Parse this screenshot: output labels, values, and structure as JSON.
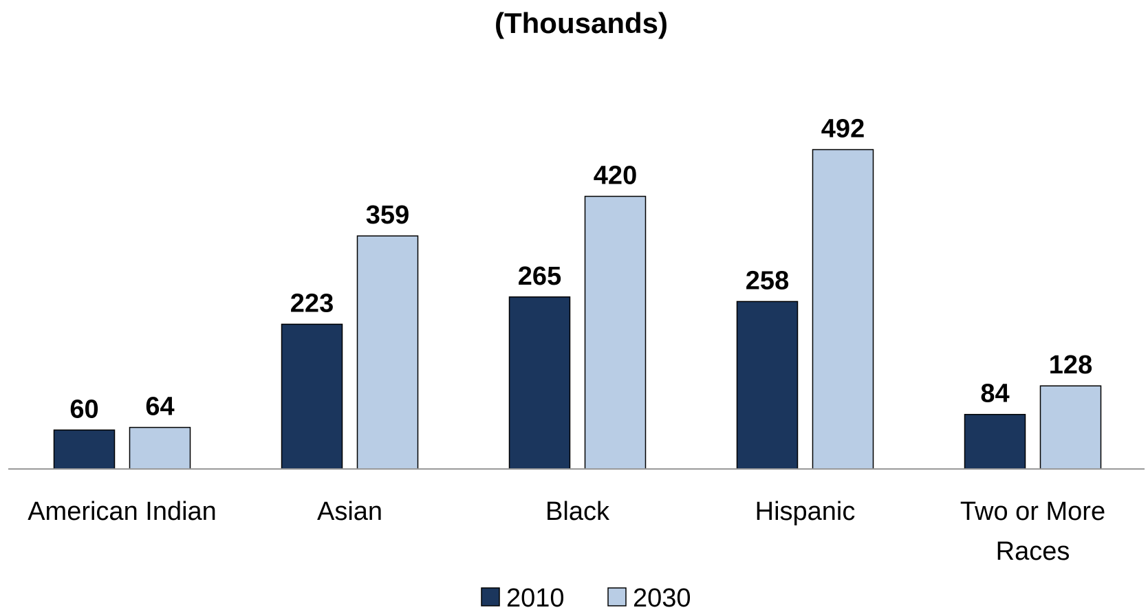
{
  "chart_data": {
    "type": "bar",
    "title": "(Thousands)",
    "categories": [
      "American Indian",
      "Asian",
      "Black",
      "Hispanic",
      "Two or More Races"
    ],
    "category_lines": [
      [
        "American Indian"
      ],
      [
        "Asian"
      ],
      [
        "Black"
      ],
      [
        "Hispanic"
      ],
      [
        "Two or More",
        "Races"
      ]
    ],
    "series": [
      {
        "name": "2010",
        "values": [
          60,
          223,
          265,
          258,
          84
        ],
        "color": "#1B365D"
      },
      {
        "name": "2030",
        "values": [
          64,
          359,
          420,
          492,
          128
        ],
        "color": "#B9CDE5"
      }
    ],
    "ylim": [
      0,
      520
    ],
    "grid": false,
    "legend": "bottom-center"
  }
}
